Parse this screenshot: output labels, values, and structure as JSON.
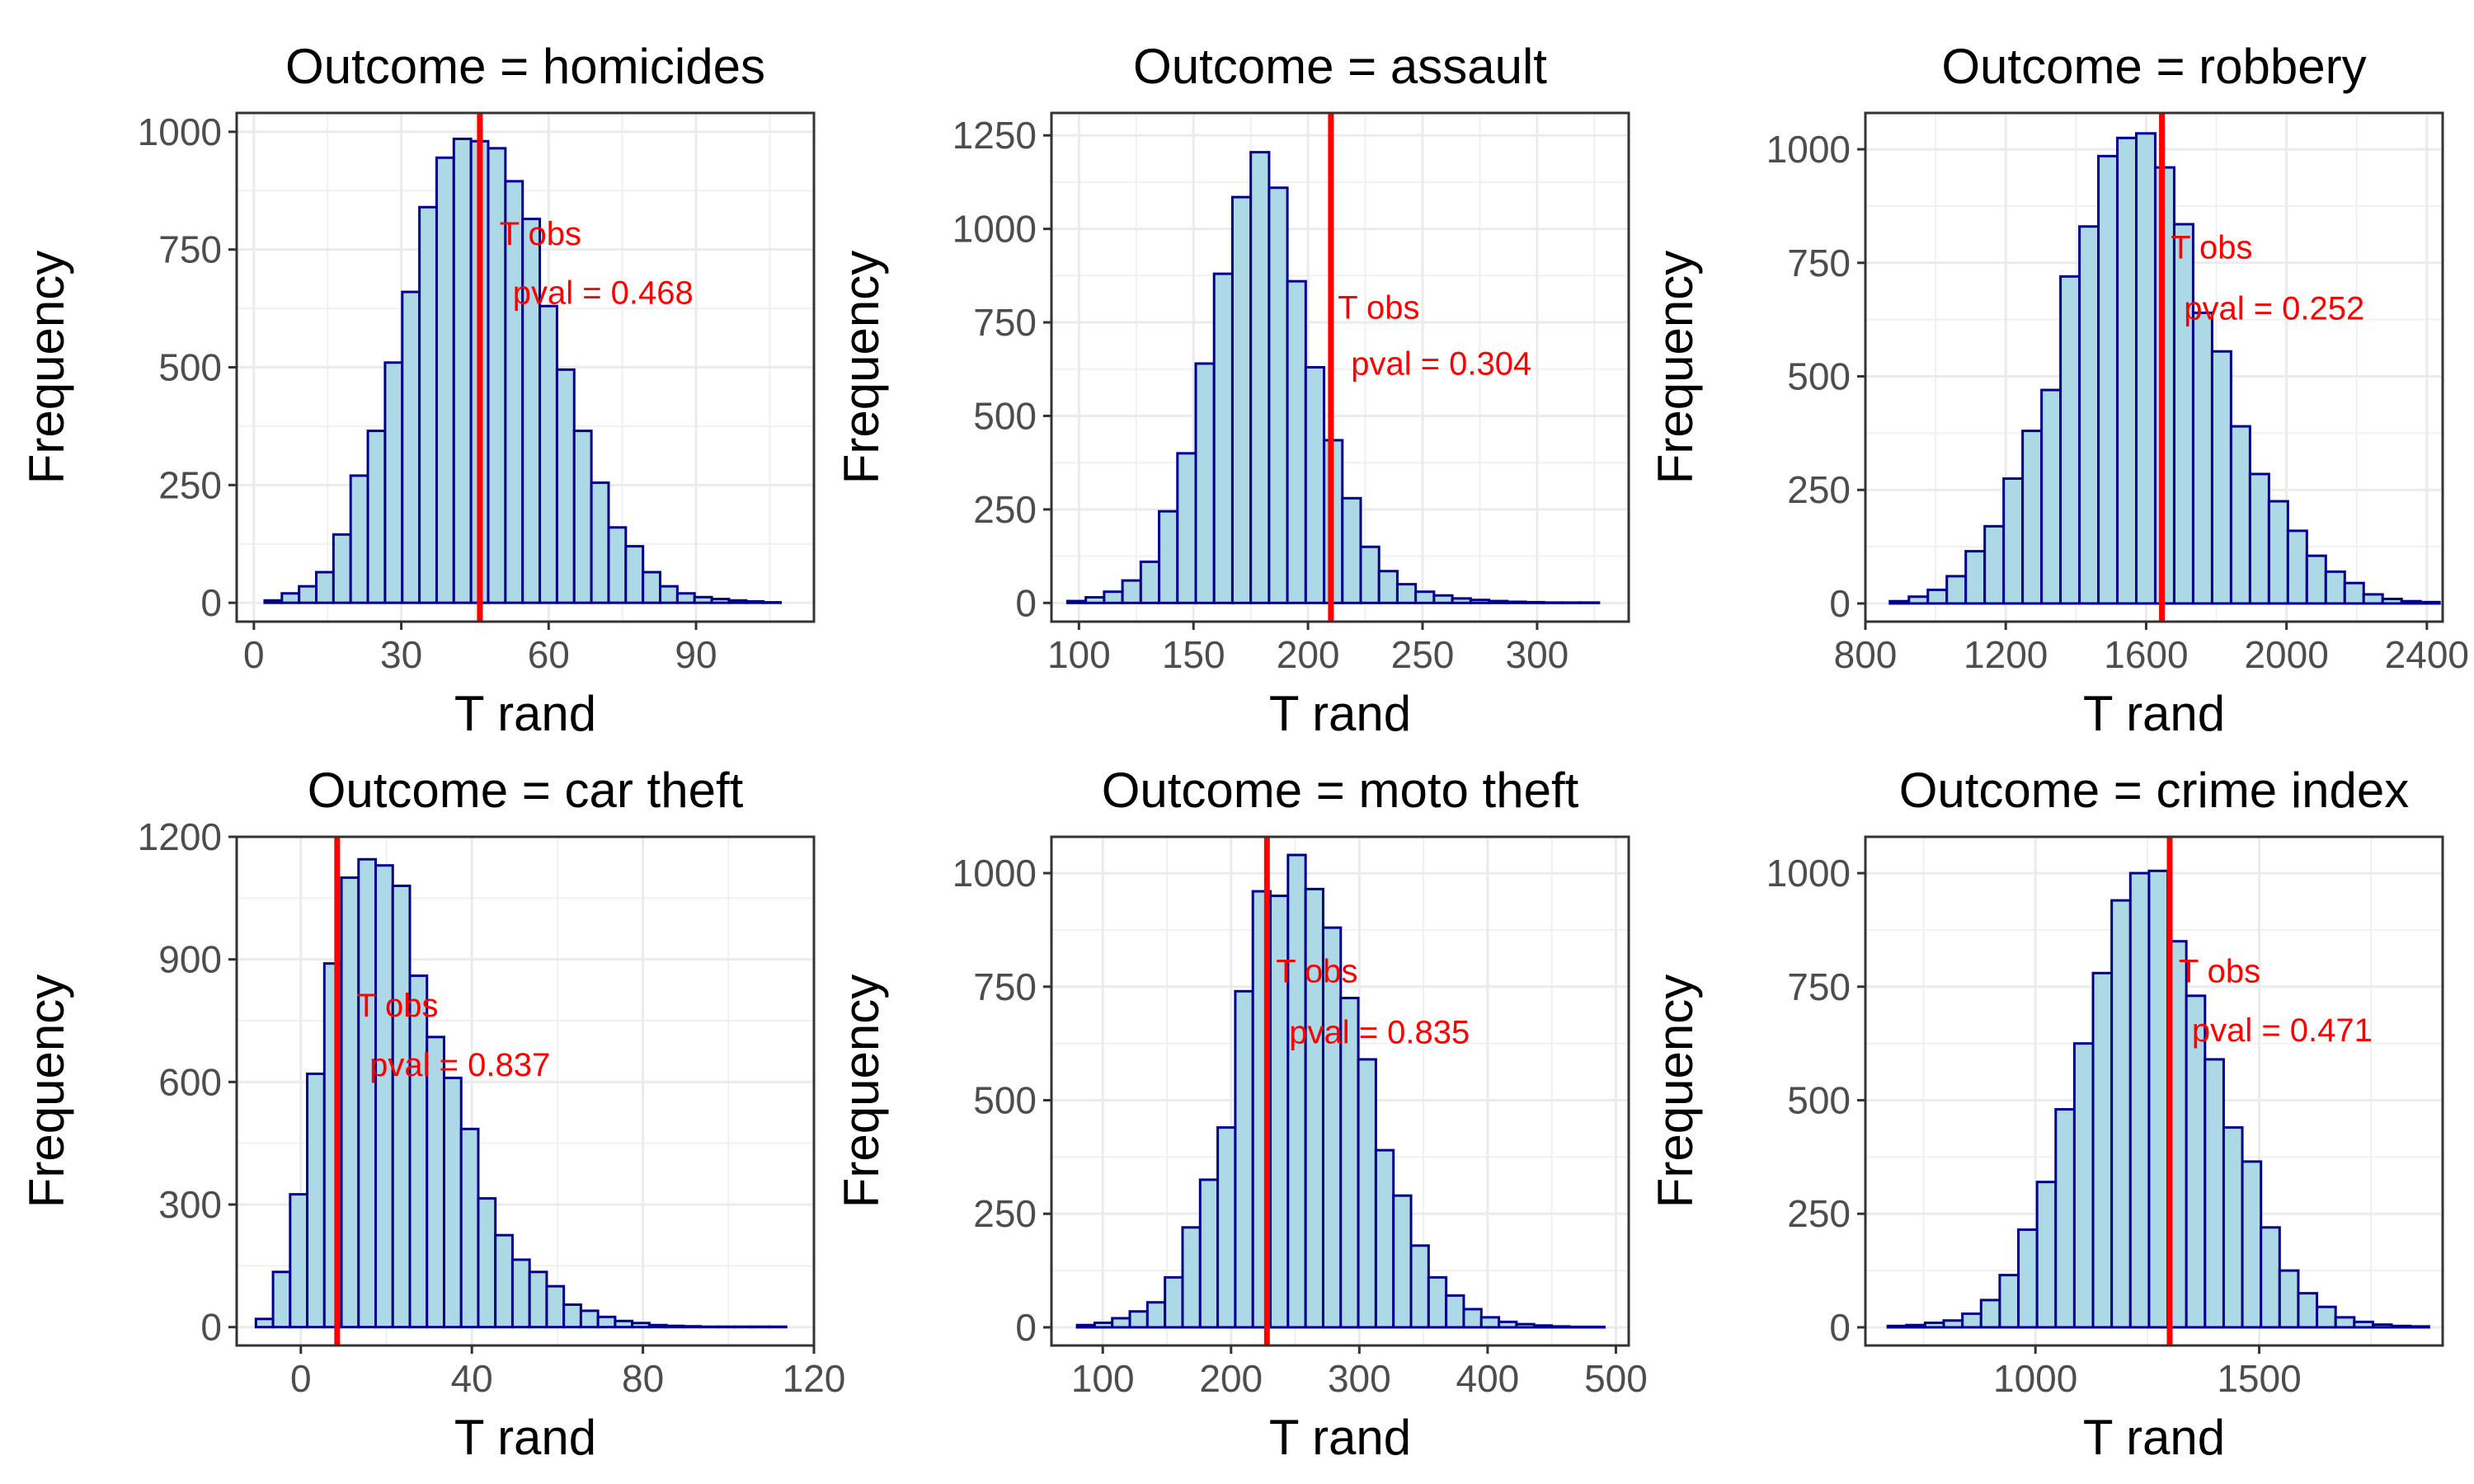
{
  "chart_data": [
    {
      "type": "bar",
      "title": "Outcome = homicides",
      "xlabel": "T rand",
      "ylabel": "Frequency",
      "xlim": [
        -3.5,
        114
      ],
      "ylim": [
        -40,
        1040
      ],
      "xticks": [
        0,
        30,
        60,
        90
      ],
      "yticks": [
        0,
        250,
        500,
        750,
        1000
      ],
      "bin_start": 2.2,
      "bin_width": 3.5,
      "values": [
        5,
        20,
        35,
        65,
        145,
        270,
        365,
        510,
        660,
        840,
        945,
        985,
        980,
        965,
        895,
        815,
        630,
        495,
        365,
        255,
        160,
        120,
        65,
        35,
        20,
        12,
        8,
        5,
        3,
        1
      ],
      "observed": 46,
      "annotation_label": "T obs",
      "annotation_pval": "pval = 0.468",
      "annotation_x": 50,
      "annotation_y_label": 760,
      "annotation_y_pval": 635,
      "bar_fill": "#ADD8E6",
      "bar_stroke": "#00008B",
      "obs_color": "#FF0000"
    },
    {
      "type": "bar",
      "title": "Outcome = assault",
      "xlabel": "T rand",
      "ylabel": "Frequency",
      "xlim": [
        88,
        340
      ],
      "ylim": [
        -50,
        1310
      ],
      "xticks": [
        100,
        150,
        200,
        250,
        300
      ],
      "yticks": [
        0,
        250,
        500,
        750,
        1000,
        1250
      ],
      "bin_start": 95,
      "bin_width": 8,
      "values": [
        5,
        15,
        30,
        60,
        110,
        245,
        400,
        640,
        880,
        1085,
        1205,
        1110,
        860,
        630,
        435,
        280,
        150,
        85,
        50,
        30,
        20,
        12,
        8,
        5,
        3,
        2,
        1,
        1,
        1
      ],
      "observed": 210,
      "annotation_label": "T obs",
      "annotation_pval": "pval = 0.304",
      "annotation_x": 213,
      "annotation_y_label": 760,
      "annotation_y_pval": 610,
      "bar_fill": "#ADD8E6",
      "bar_stroke": "#00008B",
      "obs_color": "#FF0000"
    },
    {
      "type": "bar",
      "title": "Outcome = robbery",
      "xlabel": "T rand",
      "ylabel": "Frequency",
      "xlim": [
        800,
        2445
      ],
      "ylim": [
        -40,
        1080
      ],
      "xticks": [
        800,
        1200,
        1600,
        2000,
        2400
      ],
      "yticks": [
        0,
        250,
        500,
        750,
        1000
      ],
      "bin_start": 870,
      "bin_width": 54,
      "values": [
        5,
        15,
        30,
        60,
        115,
        170,
        275,
        380,
        470,
        720,
        830,
        985,
        1025,
        1035,
        960,
        835,
        640,
        555,
        390,
        285,
        225,
        160,
        105,
        70,
        45,
        20,
        10,
        5,
        3
      ],
      "observed": 1645,
      "annotation_label": "T obs",
      "annotation_pval": "pval = 0.252",
      "annotation_x": 1670,
      "annotation_y_label": 760,
      "annotation_y_pval": 625,
      "bar_fill": "#ADD8E6",
      "bar_stroke": "#00008B",
      "obs_color": "#FF0000"
    },
    {
      "type": "bar",
      "title": "Outcome = car theft",
      "xlabel": "T rand",
      "ylabel": "Frequency",
      "xlim": [
        -15,
        120
      ],
      "ylim": [
        -45,
        1200
      ],
      "xticks": [
        0,
        40,
        80,
        120
      ],
      "yticks": [
        0,
        300,
        600,
        900,
        1200
      ],
      "bin_start": -10.5,
      "bin_width": 4,
      "values": [
        20,
        135,
        325,
        620,
        890,
        1100,
        1145,
        1130,
        1080,
        860,
        710,
        610,
        485,
        315,
        225,
        165,
        135,
        100,
        55,
        40,
        25,
        15,
        10,
        5,
        3,
        2,
        1,
        1,
        1,
        1,
        1
      ],
      "observed": 8.5,
      "annotation_label": "T obs",
      "annotation_pval": "pval = 0.837",
      "annotation_x": 13,
      "annotation_y_label": 760,
      "annotation_y_pval": 615,
      "bar_fill": "#ADD8E6",
      "bar_stroke": "#00008B",
      "obs_color": "#FF0000"
    },
    {
      "type": "bar",
      "title": "Outcome = moto theft",
      "xlabel": "T rand",
      "ylabel": "Frequency",
      "xlim": [
        60,
        510
      ],
      "ylim": [
        -40,
        1080
      ],
      "xticks": [
        100,
        200,
        300,
        400,
        500
      ],
      "yticks": [
        0,
        250,
        500,
        750,
        1000
      ],
      "bin_start": 80,
      "bin_width": 13.7,
      "values": [
        5,
        10,
        20,
        35,
        55,
        110,
        220,
        325,
        440,
        740,
        960,
        950,
        1040,
        965,
        880,
        725,
        590,
        390,
        290,
        180,
        110,
        70,
        40,
        22,
        12,
        7,
        4,
        2,
        1,
        1
      ],
      "observed": 228,
      "annotation_label": "T obs",
      "annotation_pval": "pval = 0.835",
      "annotation_x": 235,
      "annotation_y_label": 760,
      "annotation_y_pval": 625,
      "bar_fill": "#ADD8E6",
      "bar_stroke": "#00008B",
      "obs_color": "#FF0000"
    },
    {
      "type": "bar",
      "title": "Outcome = crime index",
      "xlabel": "T rand",
      "ylabel": "Frequency",
      "xlim": [
        620,
        1910
      ],
      "ylim": [
        -40,
        1080
      ],
      "xticks": [
        1000,
        1500
      ],
      "yticks": [
        0,
        250,
        500,
        750,
        1000
      ],
      "bin_start": 670,
      "bin_width": 41.7,
      "values": [
        3,
        5,
        10,
        15,
        30,
        60,
        115,
        215,
        320,
        480,
        625,
        780,
        940,
        1000,
        1005,
        850,
        730,
        590,
        440,
        365,
        220,
        125,
        75,
        45,
        22,
        12,
        6,
        3,
        2
      ],
      "observed": 1300,
      "annotation_label": "T obs",
      "annotation_pval": "pval = 0.471",
      "annotation_x": 1320,
      "annotation_y_label": 760,
      "annotation_y_pval": 630,
      "bar_fill": "#ADD8E6",
      "bar_stroke": "#00008B",
      "obs_color": "#FF0000"
    }
  ]
}
